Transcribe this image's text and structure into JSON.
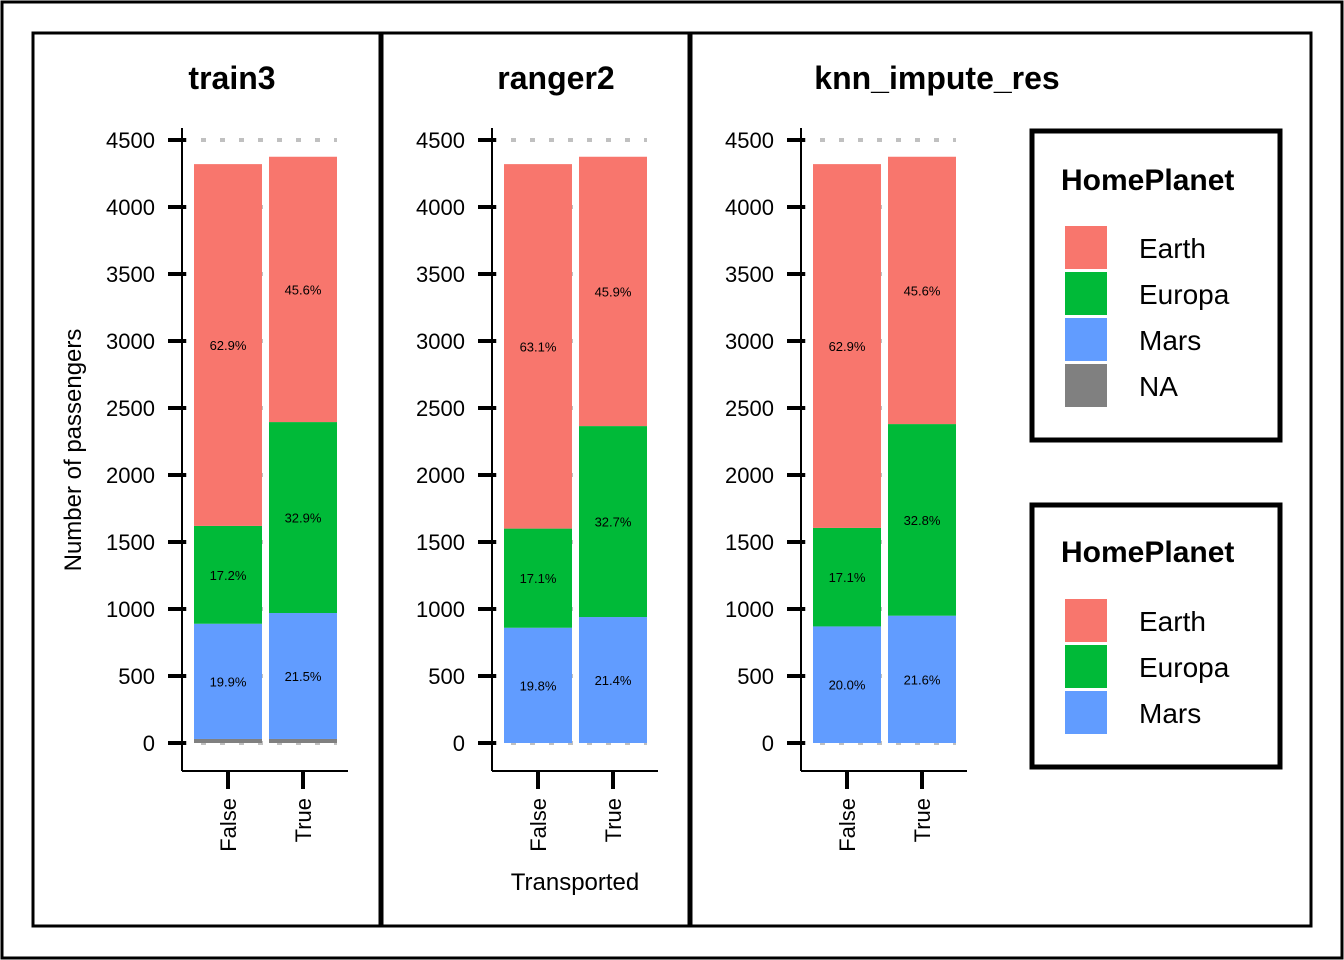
{
  "chart_data": {
    "type": "bar",
    "stacked": true,
    "xlabel": "Transported",
    "ylabel": "Number of passengers",
    "ylim": [
      0,
      4500
    ],
    "yticks": [
      "0",
      "500",
      "1000",
      "1500",
      "2000",
      "2500",
      "3000",
      "3500",
      "4000",
      "4500"
    ],
    "categories": [
      "False",
      "True"
    ],
    "colors": {
      "Earth": "#F8766D",
      "Europa": "#00BA38",
      "Mars": "#619CFF",
      "NA": "#808080"
    },
    "panels": [
      {
        "title": "train3",
        "series": [
          {
            "name": "NA",
            "values": [
              30,
              30
            ],
            "labels": [
              "",
              ""
            ]
          },
          {
            "name": "Mars",
            "values": [
              860,
              940
            ],
            "labels": [
              "19.9%",
              "21.5%"
            ]
          },
          {
            "name": "Europa",
            "values": [
              730,
              1425
            ],
            "labels": [
              "17.2%",
              "32.9%"
            ]
          },
          {
            "name": "Earth",
            "values": [
              2700,
              1980
            ],
            "labels": [
              "62.9%",
              "45.6%"
            ]
          }
        ]
      },
      {
        "title": "ranger2",
        "series": [
          {
            "name": "Mars",
            "values": [
              860,
              940
            ],
            "labels": [
              "19.8%",
              "21.4%"
            ]
          },
          {
            "name": "Europa",
            "values": [
              740,
              1425
            ],
            "labels": [
              "17.1%",
              "32.7%"
            ]
          },
          {
            "name": "Earth",
            "values": [
              2720,
              2010
            ],
            "labels": [
              "63.1%",
              "45.9%"
            ]
          }
        ]
      },
      {
        "title": "knn_impute_res",
        "series": [
          {
            "name": "Mars",
            "values": [
              870,
              950
            ],
            "labels": [
              "20.0%",
              "21.6%"
            ]
          },
          {
            "name": "Europa",
            "values": [
              735,
              1430
            ],
            "labels": [
              "17.1%",
              "32.8%"
            ]
          },
          {
            "name": "Earth",
            "values": [
              2715,
              1995
            ],
            "labels": [
              "62.9%",
              "45.6%"
            ]
          }
        ]
      }
    ]
  },
  "legends": [
    {
      "title": "HomePlanet",
      "items": [
        "Earth",
        "Europa",
        "Mars",
        "NA"
      ]
    },
    {
      "title": "HomePlanet",
      "items": [
        "Earth",
        "Europa",
        "Mars"
      ]
    }
  ]
}
